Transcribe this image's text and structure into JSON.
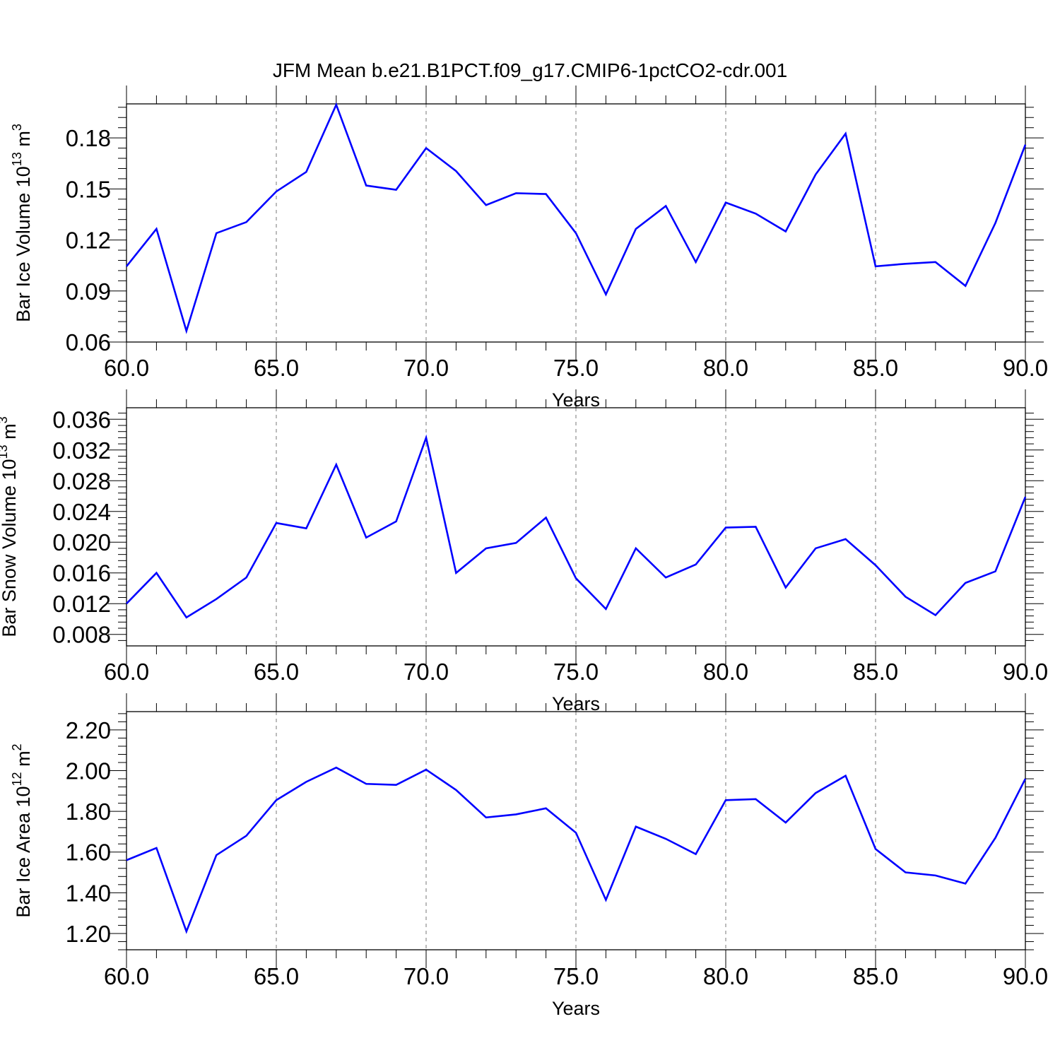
{
  "title": "JFM Mean b.e21.B1PCT.f09_g17.CMIP6-1pctCO2-cdr.001",
  "chart_data": [
    {
      "type": "line",
      "title": "JFM Mean b.e21.B1PCT.f09_g17.CMIP6-1pctCO2-cdr.001",
      "xlabel": "Years",
      "ylabel": "Bar Ice Volume 10",
      "ylabel_exp": "13",
      "ylabel_unit": " m",
      "ylabel_unit_exp": "3",
      "xlim": [
        60,
        90
      ],
      "ylim": [
        0.06,
        0.2
      ],
      "xticks": [
        "60.0",
        "65.0",
        "70.0",
        "75.0",
        "80.0",
        "85.0",
        "90.0"
      ],
      "yticks": [
        0.06,
        0.09,
        0.12,
        0.15,
        0.18
      ],
      "ytick_labels": [
        "0.06",
        "0.09",
        "0.12",
        "0.15",
        "0.18"
      ],
      "x": [
        60,
        61,
        62,
        63,
        64,
        65,
        66,
        67,
        68,
        69,
        70,
        71,
        72,
        73,
        74,
        75,
        76,
        77,
        78,
        79,
        80,
        81,
        82,
        83,
        84,
        85,
        86,
        87,
        88,
        89,
        90
      ],
      "series": [
        {
          "color": "#0000ff",
          "values": [
            0.1045,
            0.1265,
            0.0665,
            0.124,
            0.1305,
            0.1485,
            0.16,
            0.1995,
            0.152,
            0.1495,
            0.174,
            0.1605,
            0.1405,
            0.1475,
            0.147,
            0.124,
            0.088,
            0.1265,
            0.14,
            0.107,
            0.142,
            0.1355,
            0.125,
            0.1585,
            0.1825,
            0.1045,
            0.106,
            0.107,
            0.093,
            0.13,
            0.176
          ]
        }
      ],
      "grid": "vertical dashed at major x ticks"
    },
    {
      "type": "line",
      "xlabel": "Years",
      "ylabel": "Bar Snow Volume 10",
      "ylabel_exp": "13",
      "ylabel_unit": " m",
      "ylabel_unit_exp": "3",
      "xlim": [
        60,
        90
      ],
      "ylim": [
        0.0065,
        0.0375
      ],
      "xticks": [
        "60.0",
        "65.0",
        "70.0",
        "75.0",
        "80.0",
        "85.0",
        "90.0"
      ],
      "yticks": [
        0.008,
        0.012,
        0.016,
        0.02,
        0.024,
        0.028,
        0.032,
        0.036
      ],
      "ytick_labels": [
        "0.008",
        "0.012",
        "0.016",
        "0.020",
        "0.024",
        "0.028",
        "0.032",
        "0.036"
      ],
      "x": [
        60,
        61,
        62,
        63,
        64,
        65,
        66,
        67,
        68,
        69,
        70,
        71,
        72,
        73,
        74,
        75,
        76,
        77,
        78,
        79,
        80,
        81,
        82,
        83,
        84,
        85,
        86,
        87,
        88,
        89,
        90
      ],
      "series": [
        {
          "color": "#0000ff",
          "values": [
            0.012,
            0.016,
            0.0102,
            0.0126,
            0.0154,
            0.0225,
            0.0218,
            0.0301,
            0.0206,
            0.0227,
            0.0336,
            0.016,
            0.0192,
            0.0199,
            0.0232,
            0.0153,
            0.0113,
            0.0192,
            0.0154,
            0.0171,
            0.0219,
            0.022,
            0.0141,
            0.0192,
            0.0204,
            0.017,
            0.0129,
            0.0105,
            0.0147,
            0.0162,
            0.0259
          ]
        }
      ],
      "grid": "vertical dashed at major x ticks"
    },
    {
      "type": "line",
      "xlabel": "Years",
      "ylabel": "Bar Ice Area 10",
      "ylabel_exp": "12",
      "ylabel_unit": " m",
      "ylabel_unit_exp": "2",
      "xlim": [
        60,
        90
      ],
      "ylim": [
        1.12,
        2.29
      ],
      "xticks": [
        "60.0",
        "65.0",
        "70.0",
        "75.0",
        "80.0",
        "85.0",
        "90.0"
      ],
      "yticks": [
        1.2,
        1.4,
        1.6,
        1.8,
        2.0,
        2.2
      ],
      "ytick_labels": [
        "1.20",
        "1.40",
        "1.60",
        "1.80",
        "2.00",
        "2.20"
      ],
      "x": [
        60,
        61,
        62,
        63,
        64,
        65,
        66,
        67,
        68,
        69,
        70,
        71,
        72,
        73,
        74,
        75,
        76,
        77,
        78,
        79,
        80,
        81,
        82,
        83,
        84,
        85,
        86,
        87,
        88,
        89,
        90
      ],
      "series": [
        {
          "color": "#0000ff",
          "values": [
            1.56,
            1.62,
            1.21,
            1.585,
            1.68,
            1.855,
            1.945,
            2.015,
            1.935,
            1.93,
            2.005,
            1.905,
            1.77,
            1.785,
            1.815,
            1.695,
            1.365,
            1.725,
            1.665,
            1.59,
            1.855,
            1.86,
            1.745,
            1.89,
            1.975,
            1.615,
            1.5,
            1.485,
            1.445,
            1.67,
            1.96
          ]
        }
      ],
      "grid": "vertical dashed at major x ticks"
    }
  ]
}
